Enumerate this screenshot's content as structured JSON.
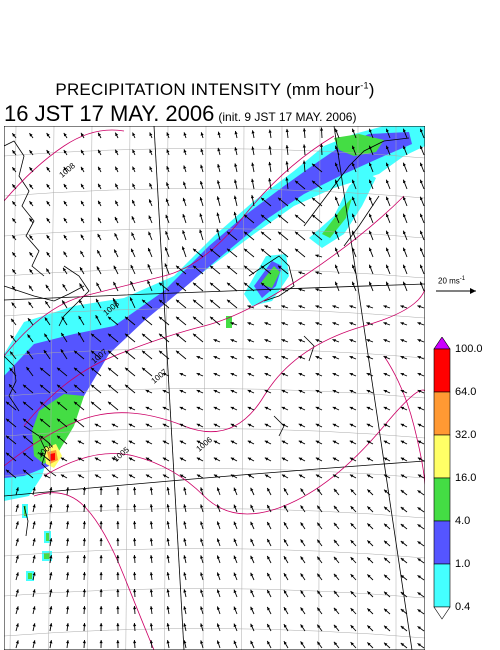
{
  "title": {
    "main": "PRECIPITATION INTENSITY (mm hour",
    "sup": "-1",
    "close": ")"
  },
  "subtitle": {
    "valid_time": "16 JST 17 MAY. 2006",
    "init_time": "(init. 9 JST 17 MAY. 2006)"
  },
  "reference_vector": {
    "label": "20 ms",
    "sup": "-1",
    "speed": 20
  },
  "isobar_labels": [
    "1008",
    "1008",
    "1007",
    "1007",
    "1006",
    "1005",
    "1004"
  ],
  "colorbar": {
    "ticks": [
      "100.0",
      "64.0",
      "32.0",
      "16.0",
      "4.0",
      "1.0",
      "0.4"
    ],
    "colors": [
      "#cc00ff",
      "#ff0000",
      "#ff9933",
      "#ffff66",
      "#44dd44",
      "#5555ff",
      "#44ffff"
    ]
  },
  "map_style": {
    "coast_color": "#000000",
    "isobar_color": "#cc0066",
    "grid_color": "#aaaaaa",
    "lat_lon_line_color": "#000000"
  }
}
